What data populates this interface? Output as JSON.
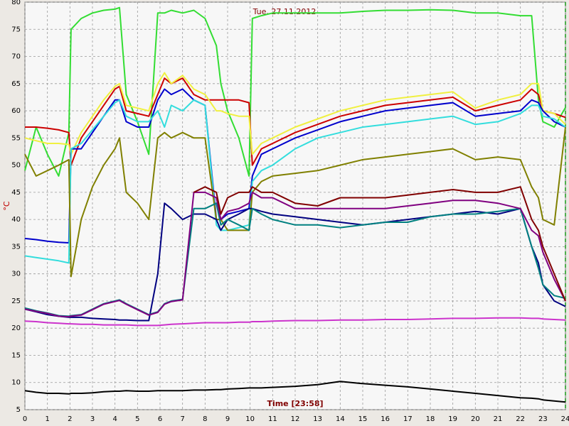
{
  "chart_data": {
    "type": "line",
    "title": "Tue, 27.11.2012",
    "ylabel": "°C",
    "xlabel": "Time [23:58]",
    "x": [
      0,
      0.5,
      1,
      1.5,
      1.95,
      2.05,
      2.5,
      3,
      3.5,
      4,
      4.2,
      4.5,
      5,
      5.5,
      5.9,
      6.2,
      6.5,
      7,
      7.5,
      8,
      8.5,
      8.7,
      9,
      9.5,
      9.95,
      10.1,
      10.5,
      11,
      12,
      13,
      14,
      15,
      16,
      17,
      18,
      19,
      20,
      21,
      22,
      22.5,
      22.8,
      23,
      23.5,
      24
    ],
    "series": [
      {
        "color": "#33dd33",
        "values": [
          49,
          57,
          52,
          48,
          56,
          75,
          77,
          78,
          78.5,
          78.7,
          79,
          63,
          58,
          52,
          78,
          78,
          78.5,
          78,
          78.5,
          77,
          72,
          65,
          60,
          55,
          48,
          77,
          77.5,
          78,
          78,
          78,
          78,
          78.3,
          78.5,
          78.5,
          78.6,
          78.5,
          78,
          78,
          77.5,
          77.5,
          62,
          58,
          57,
          60.6
        ]
      },
      {
        "color": "#cc0000",
        "values": [
          57,
          57,
          56.8,
          56.5,
          56,
          50,
          55,
          58,
          61,
          64,
          64.5,
          60,
          59.5,
          59,
          63,
          66,
          65,
          66,
          63,
          62,
          62,
          62,
          62,
          62,
          61.5,
          50,
          53,
          54,
          56,
          57.5,
          59,
          60,
          61,
          61.5,
          62,
          62.5,
          60,
          61,
          62,
          64,
          63,
          60,
          59.5,
          58.8
        ]
      },
      {
        "color": "#f0f040",
        "values": [
          55,
          54.5,
          54,
          54,
          53.8,
          52,
          56,
          59,
          62,
          64.5,
          65,
          61,
          60.5,
          60,
          65,
          67,
          65,
          66.5,
          64,
          63,
          60,
          60,
          59.5,
          59,
          59,
          52,
          54,
          55,
          57,
          58.5,
          60,
          61,
          62,
          62.5,
          63,
          63.5,
          60.5,
          62,
          63,
          65,
          65,
          60,
          59.5,
          57.5
        ]
      },
      {
        "color": "#0000cc",
        "values": [
          36.5,
          36.3,
          36,
          35.8,
          35.7,
          53,
          53,
          56,
          59,
          62,
          62,
          58,
          57,
          57,
          62,
          64,
          63,
          64,
          62,
          61,
          40,
          40,
          41,
          41.5,
          42,
          48,
          52,
          53,
          55,
          56.5,
          58,
          59,
          60,
          60.5,
          61,
          61.5,
          59,
          59.5,
          60,
          62,
          61.5,
          60,
          58,
          57
        ]
      },
      {
        "color": "#33dddd",
        "values": [
          33.3,
          33,
          32.7,
          32.4,
          32,
          53,
          54,
          56.5,
          59,
          61.5,
          62,
          59,
          58,
          58,
          60,
          57,
          61,
          60,
          62,
          61,
          39,
          38,
          38,
          38.5,
          39,
          47,
          49,
          50,
          53,
          55,
          56,
          57,
          57.5,
          58,
          58.5,
          59,
          57.5,
          58,
          59.5,
          61,
          61,
          59,
          58.5,
          57
        ]
      },
      {
        "color": "#808000",
        "values": [
          52,
          48,
          49,
          50,
          51,
          29.5,
          40,
          46,
          50,
          53,
          55,
          45,
          43,
          40,
          55,
          56,
          55,
          56,
          55,
          55,
          40,
          40,
          38,
          38,
          38,
          45,
          47,
          48,
          48.5,
          49,
          50,
          51,
          51.5,
          52,
          52.5,
          53,
          51,
          51.5,
          51,
          46,
          44,
          40,
          39,
          57
        ]
      },
      {
        "color": "#000080",
        "values": [
          23.5,
          23,
          22.5,
          22.2,
          22,
          22,
          22,
          21.8,
          21.7,
          21.6,
          21.5,
          21.5,
          21.4,
          21.4,
          30,
          43,
          42,
          40,
          41,
          41,
          40,
          38,
          40,
          41,
          42,
          42,
          41.5,
          41,
          40.5,
          40,
          39.5,
          39,
          39.5,
          40,
          40.5,
          41,
          41.5,
          41,
          42,
          35,
          32,
          28,
          25,
          24
        ]
      },
      {
        "color": "#008080",
        "values": [
          23.7,
          23.2,
          22.8,
          22.3,
          22.2,
          22.3,
          22.5,
          23.5,
          24.5,
          25,
          25.2,
          24.5,
          23.5,
          22.5,
          23,
          24.5,
          25,
          25.3,
          42,
          42,
          43,
          39,
          40,
          39,
          38,
          42,
          41,
          40,
          39,
          39,
          38.5,
          39,
          39.5,
          39.5,
          40.5,
          41,
          41,
          41.5,
          42,
          35,
          31,
          28,
          26,
          25.5
        ]
      },
      {
        "color": "#800080",
        "values": [
          23.5,
          23.1,
          22.7,
          22.2,
          22.1,
          22.2,
          22.4,
          23.4,
          24.4,
          24.9,
          25.1,
          24.4,
          23.4,
          22.4,
          22.9,
          24.4,
          24.9,
          25.2,
          45,
          45,
          44,
          40,
          41.5,
          42,
          43,
          45,
          44,
          44,
          42,
          42,
          42,
          42,
          42,
          42.5,
          43,
          43.5,
          43.5,
          43,
          42,
          38,
          37,
          34,
          29,
          25
        ]
      },
      {
        "color": "#800000",
        "values": [
          null,
          null,
          null,
          null,
          null,
          null,
          null,
          null,
          null,
          null,
          null,
          null,
          null,
          null,
          null,
          null,
          null,
          null,
          45,
          46,
          45,
          41,
          44,
          45,
          45,
          46,
          45,
          45,
          43,
          42.5,
          44,
          44,
          44,
          44.5,
          45,
          45.5,
          45,
          45,
          46,
          40,
          38,
          35,
          30,
          25
        ]
      },
      {
        "color": "#cc33cc",
        "values": [
          21.3,
          21.2,
          21,
          20.9,
          20.8,
          20.8,
          20.7,
          20.7,
          20.6,
          20.6,
          20.6,
          20.6,
          20.5,
          20.5,
          20.5,
          20.6,
          20.7,
          20.8,
          20.9,
          21,
          21,
          21,
          21,
          21.1,
          21.1,
          21.2,
          21.2,
          21.3,
          21.4,
          21.4,
          21.5,
          21.5,
          21.6,
          21.6,
          21.7,
          21.8,
          21.8,
          21.9,
          21.9,
          21.8,
          21.8,
          21.7,
          21.6,
          21.5
        ]
      },
      {
        "color": "#000000",
        "values": [
          8.5,
          8.2,
          8,
          8,
          7.9,
          8,
          8,
          8.1,
          8.3,
          8.4,
          8.4,
          8.5,
          8.4,
          8.4,
          8.5,
          8.5,
          8.5,
          8.5,
          8.6,
          8.6,
          8.7,
          8.7,
          8.8,
          8.9,
          9,
          9,
          9,
          9.1,
          9.3,
          9.6,
          10.2,
          9.8,
          9.5,
          9.2,
          8.8,
          8.4,
          8,
          7.6,
          7.2,
          7.1,
          7,
          6.8,
          6.6,
          6.4
        ]
      }
    ],
    "xlim": [
      0,
      24
    ],
    "ylim": [
      5,
      80
    ],
    "xticks": [
      0,
      1,
      2,
      3,
      4,
      5,
      6,
      7,
      8,
      9,
      10,
      11,
      12,
      13,
      14,
      15,
      16,
      17,
      18,
      19,
      20,
      21,
      22,
      23,
      24
    ],
    "yticks": [
      5,
      10,
      15,
      20,
      25,
      30,
      35,
      40,
      45,
      50,
      55,
      60,
      65,
      70,
      75,
      80
    ],
    "grid": true
  }
}
